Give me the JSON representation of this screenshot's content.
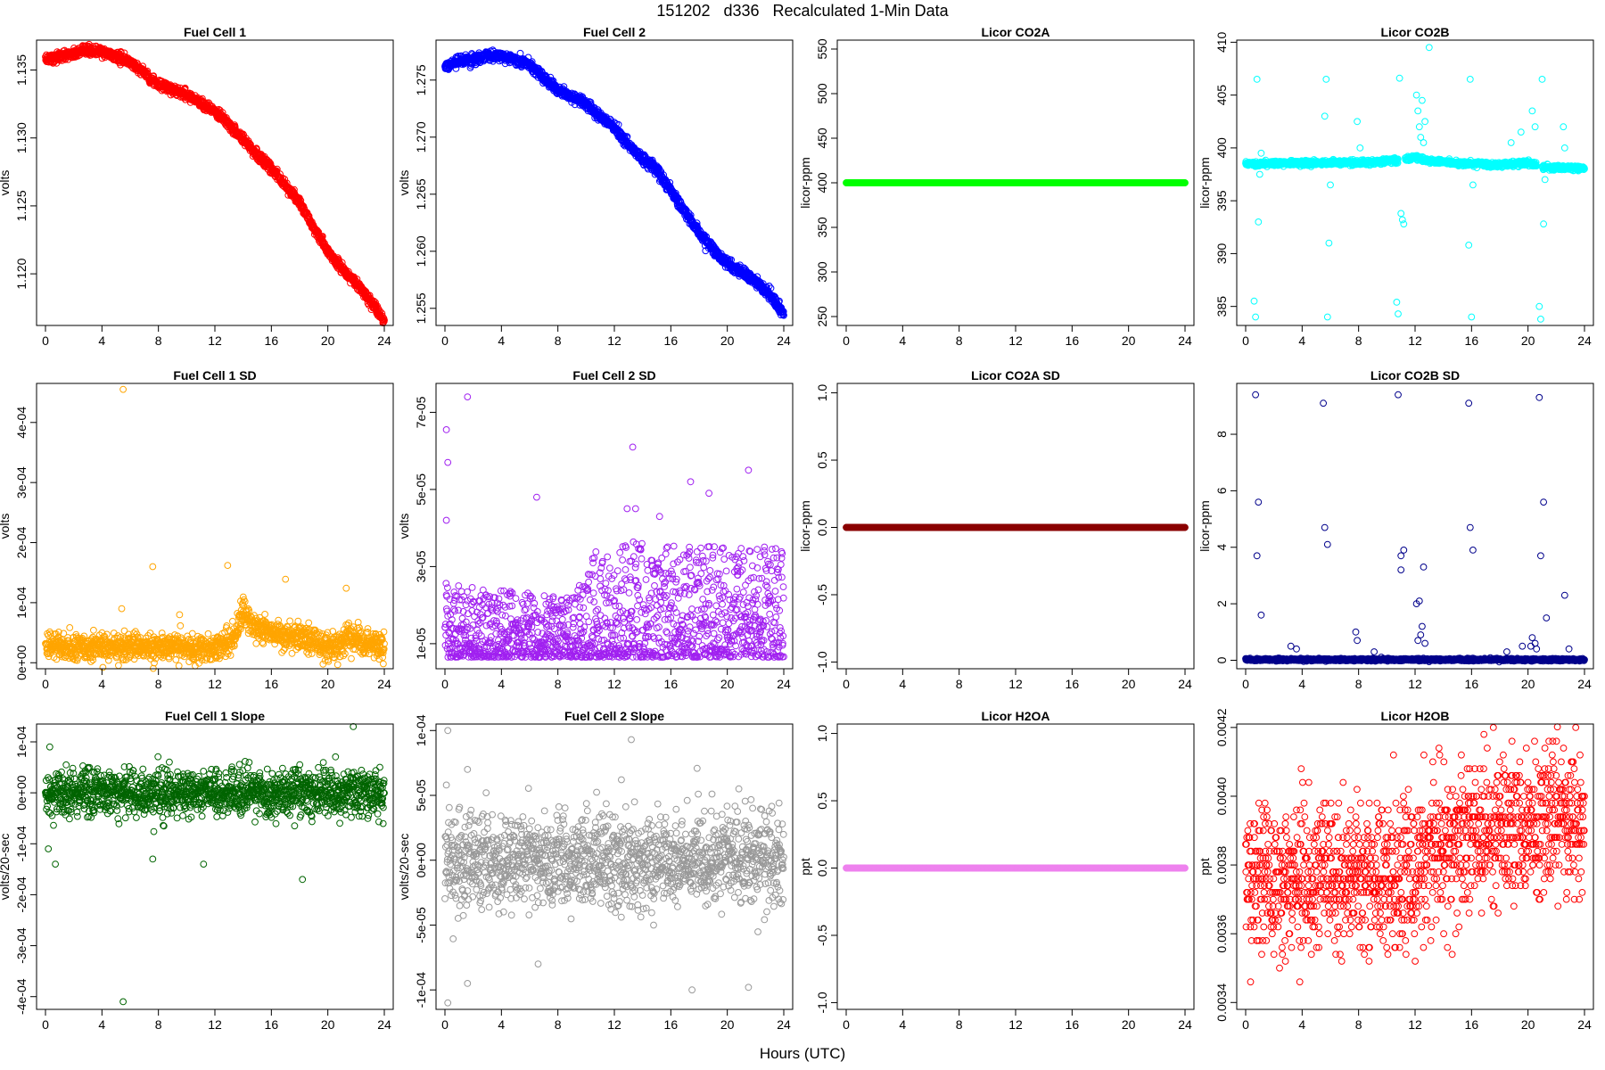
{
  "figure": {
    "title": "151202   d336   Recalculated 1-Min Data",
    "xlabel": "Hours (UTC)"
  },
  "chart_data": [
    {
      "type": "scatter",
      "title": "Fuel Cell 1",
      "ylabel": "volts",
      "color": "#ff0000",
      "xlim": [
        0,
        24
      ],
      "ylim": [
        1.1162,
        1.1372
      ],
      "xticks": [
        0,
        4,
        8,
        12,
        16,
        20,
        24
      ],
      "yticks": [
        1.12,
        1.125,
        1.13,
        1.135
      ],
      "ytick_labels": [
        "1.120",
        "1.125",
        "1.130",
        "1.135"
      ],
      "pattern": "curve",
      "curve_x": [
        0,
        1,
        2,
        3,
        3.7,
        5,
        6,
        7,
        8,
        9,
        10,
        11,
        12,
        13,
        14,
        15,
        16,
        17,
        18,
        19,
        20,
        21,
        22,
        23,
        24
      ],
      "curve_y": [
        1.1358,
        1.136,
        1.1362,
        1.1364,
        1.1364,
        1.136,
        1.1356,
        1.1348,
        1.1339,
        1.1336,
        1.1332,
        1.1326,
        1.1319,
        1.131,
        1.1299,
        1.1288,
        1.1277,
        1.1266,
        1.1252,
        1.1234,
        1.1216,
        1.1204,
        1.1193,
        1.118,
        1.1165
      ],
      "noise": 0.00018,
      "n_points": 1440
    },
    {
      "type": "scatter",
      "title": "Fuel Cell 2",
      "ylabel": "volts",
      "color": "#0000ff",
      "xlim": [
        0,
        24
      ],
      "ylim": [
        1.2535,
        1.2785
      ],
      "xticks": [
        0,
        4,
        8,
        12,
        16,
        20,
        24
      ],
      "yticks": [
        1.255,
        1.26,
        1.265,
        1.27,
        1.275
      ],
      "ytick_labels": [
        "1.255",
        "1.260",
        "1.265",
        "1.270",
        "1.275"
      ],
      "pattern": "curve",
      "curve_x": [
        0,
        1,
        2,
        3,
        3.7,
        5,
        6,
        7,
        8,
        9,
        10,
        11,
        12,
        13,
        14,
        15,
        16,
        17,
        18,
        19,
        20,
        21,
        22,
        23,
        24
      ],
      "curve_y": [
        1.2762,
        1.2766,
        1.2768,
        1.2771,
        1.2772,
        1.2768,
        1.2763,
        1.2752,
        1.2742,
        1.2736,
        1.2729,
        1.2718,
        1.2708,
        1.2693,
        1.2681,
        1.2672,
        1.2653,
        1.2635,
        1.2616,
        1.2602,
        1.2589,
        1.2582,
        1.2573,
        1.2562,
        1.2545
      ],
      "noise": 0.00022,
      "n_points": 1440
    },
    {
      "type": "scatter",
      "title": "Licor CO2A",
      "ylabel": "licor-ppm",
      "color": "#00ff00",
      "xlim": [
        0,
        24
      ],
      "ylim": [
        240,
        560
      ],
      "xticks": [
        0,
        4,
        8,
        12,
        16,
        20,
        24
      ],
      "yticks": [
        250,
        300,
        350,
        400,
        450,
        500,
        550
      ],
      "ytick_labels": [
        "250",
        "300",
        "350",
        "400",
        "450",
        "500",
        "550"
      ],
      "pattern": "flat",
      "flat_value": 400,
      "n_points": 1440
    },
    {
      "type": "scatter",
      "title": "Licor CO2B",
      "ylabel": "licor-ppm",
      "color": "#00ffff",
      "xlim": [
        0,
        24
      ],
      "ylim": [
        383.2,
        410.2
      ],
      "xticks": [
        0,
        4,
        8,
        12,
        16,
        20,
        24
      ],
      "yticks": [
        385,
        390,
        395,
        400,
        405,
        410
      ],
      "ytick_labels": [
        "385",
        "390",
        "395",
        "400",
        "405",
        "410"
      ],
      "pattern": "baseline_spikes",
      "baseline_x": [
        0,
        4,
        8,
        10.5,
        11,
        12,
        13,
        16,
        18,
        20,
        21,
        22,
        24
      ],
      "baseline_y": [
        398.5,
        398.6,
        398.6,
        398.8,
        398.9,
        399.1,
        398.8,
        398.5,
        398.4,
        398.6,
        398.2,
        398.1,
        398.1
      ],
      "noise": 0.12,
      "gaps": [
        [
          10.8,
          11.3
        ],
        [
          20.6,
          21.0
        ]
      ],
      "spikes": [
        [
          0.6,
          385.5
        ],
        [
          0.7,
          384
        ],
        [
          0.8,
          406.5
        ],
        [
          0.9,
          393
        ],
        [
          1.0,
          397.5
        ],
        [
          1.1,
          399.5
        ],
        [
          5.6,
          403
        ],
        [
          5.7,
          406.5
        ],
        [
          5.8,
          384
        ],
        [
          5.9,
          391
        ],
        [
          6.0,
          396.5
        ],
        [
          7.9,
          402.5
        ],
        [
          8.1,
          400
        ],
        [
          10.7,
          385.4
        ],
        [
          10.8,
          384.3
        ],
        [
          10.9,
          406.6
        ],
        [
          11.0,
          393.8
        ],
        [
          11.1,
          393.2
        ],
        [
          11.2,
          392.8
        ],
        [
          12.1,
          405
        ],
        [
          12.2,
          403.5
        ],
        [
          12.3,
          402
        ],
        [
          12.4,
          401
        ],
        [
          12.5,
          404.5
        ],
        [
          12.6,
          400.5
        ],
        [
          12.7,
          402.5
        ],
        [
          13.0,
          409.5
        ],
        [
          15.8,
          390.8
        ],
        [
          15.9,
          406.5
        ],
        [
          16.0,
          384
        ],
        [
          16.1,
          396.5
        ],
        [
          18.8,
          400.5
        ],
        [
          19.5,
          401.5
        ],
        [
          20.3,
          403.5
        ],
        [
          20.5,
          402
        ],
        [
          20.8,
          385
        ],
        [
          20.9,
          383.8
        ],
        [
          21.0,
          406.5
        ],
        [
          21.1,
          392.8
        ],
        [
          21.2,
          397
        ],
        [
          22.5,
          402
        ],
        [
          22.6,
          400
        ]
      ],
      "n_points": 1440
    },
    {
      "type": "scatter",
      "title": "Fuel Cell 1 SD",
      "ylabel": "volts",
      "color": "#ffa500",
      "xlim": [
        0,
        24
      ],
      "ylim": [
        -1e-05,
        0.000465
      ],
      "xticks": [
        0,
        4,
        8,
        12,
        16,
        20,
        24
      ],
      "yticks": [
        0,
        0.0001,
        0.0002,
        0.0003,
        0.0004
      ],
      "ytick_labels": [
        "0e+00",
        "1e-04",
        "2e-04",
        "3e-04",
        "4e-04"
      ],
      "pattern": "baseline_spikes",
      "baseline_x": [
        0,
        4,
        8,
        12,
        13,
        13.5,
        14,
        14.5,
        15,
        16,
        17,
        18,
        19,
        20,
        21,
        21.5,
        22,
        24
      ],
      "baseline_y": [
        2.8e-05,
        2.5e-05,
        2.6e-05,
        2.5e-05,
        3.3e-05,
        5e-05,
        8.8e-05,
        7e-05,
        5.8e-05,
        5.2e-05,
        4.5e-05,
        4.2e-05,
        3.5e-05,
        2.8e-05,
        3e-05,
        5e-05,
        3.5e-05,
        2.5e-05
      ],
      "noise": 1.1e-05,
      "spikes": [
        [
          5.5,
          0.000455
        ],
        [
          7.6,
          0.00016
        ],
        [
          12.9,
          0.000162
        ],
        [
          17.0,
          0.000139
        ],
        [
          21.3,
          0.000124
        ],
        [
          5.4,
          9e-05
        ],
        [
          9.5,
          8e-05
        ]
      ],
      "n_points": 1440
    },
    {
      "type": "scatter",
      "title": "Fuel Cell 2 SD",
      "ylabel": "volts",
      "color": "#a020f0",
      "xlim": [
        0,
        24
      ],
      "ylim": [
        3.5e-06,
        7.75e-05
      ],
      "xticks": [
        0,
        4,
        8,
        12,
        16,
        20,
        24
      ],
      "yticks": [
        1e-05,
        3e-05,
        5e-05,
        7e-05
      ],
      "ytick_labels": [
        "1e-05",
        "3e-05",
        "5e-05",
        "7e-05"
      ],
      "pattern": "random_range",
      "ranges_x": [
        0,
        9,
        11,
        24
      ],
      "ranges_lo": [
        6.5e-06,
        6.5e-06,
        6.5e-06,
        6.5e-06
      ],
      "ranges_hi": [
        2.6e-05,
        2.2e-05,
        3.7e-05,
        3.5e-05
      ],
      "spikes": [
        [
          0.1,
          6.55e-05
        ],
        [
          0.2,
          5.7e-05
        ],
        [
          1.6,
          7.4e-05
        ],
        [
          6.5,
          4.8e-05
        ],
        [
          13.3,
          6.1e-05
        ],
        [
          17.4,
          5.2e-05
        ],
        [
          18.7,
          4.9e-05
        ],
        [
          21.5,
          5.5e-05
        ],
        [
          0.1,
          4.2e-05
        ],
        [
          12.9,
          4.5e-05
        ],
        [
          13.5,
          4.5e-05
        ],
        [
          15.2,
          4.3e-05
        ]
      ],
      "n_points": 1440
    },
    {
      "type": "scatter",
      "title": "Licor CO2A SD",
      "ylabel": "licor-ppm",
      "color": "#8b0000",
      "xlim": [
        0,
        24
      ],
      "ylim": [
        -1.05,
        1.07
      ],
      "xticks": [
        0,
        4,
        8,
        12,
        16,
        20,
        24
      ],
      "yticks": [
        -1,
        -0.5,
        0,
        0.5,
        1
      ],
      "ytick_labels": [
        "-1.0",
        "-0.5",
        "0.0",
        "0.5",
        "1.0"
      ],
      "pattern": "flat",
      "flat_value": 0,
      "n_points": 1440
    },
    {
      "type": "scatter",
      "title": "Licor CO2B SD",
      "ylabel": "licor-ppm",
      "color": "#00008b",
      "xlim": [
        0,
        24
      ],
      "ylim": [
        -0.3,
        9.8
      ],
      "xticks": [
        0,
        4,
        8,
        12,
        16,
        20,
        24
      ],
      "yticks": [
        0,
        2,
        4,
        6,
        8
      ],
      "ytick_labels": [
        "0",
        "2",
        "4",
        "6",
        "8"
      ],
      "pattern": "baseline_spikes",
      "baseline_x": [
        0,
        24
      ],
      "baseline_y": [
        0.02,
        0.02
      ],
      "noise": 0.02,
      "spikes": [
        [
          0.7,
          9.4
        ],
        [
          0.8,
          3.7
        ],
        [
          0.9,
          5.6
        ],
        [
          1.1,
          1.6
        ],
        [
          5.5,
          9.1
        ],
        [
          5.6,
          4.7
        ],
        [
          5.8,
          4.1
        ],
        [
          10.8,
          9.4
        ],
        [
          11.0,
          3.7
        ],
        [
          11.2,
          3.9
        ],
        [
          11.0,
          3.2
        ],
        [
          12.6,
          3.3
        ],
        [
          15.8,
          9.1
        ],
        [
          15.9,
          4.7
        ],
        [
          16.1,
          3.9
        ],
        [
          20.8,
          9.3
        ],
        [
          20.9,
          3.7
        ],
        [
          21.1,
          5.6
        ],
        [
          21.3,
          1.5
        ],
        [
          22.6,
          2.3
        ],
        [
          12.1,
          2.0
        ],
        [
          12.3,
          2.1
        ],
        [
          12.5,
          1.2
        ],
        [
          12.4,
          0.9
        ],
        [
          12.2,
          0.7
        ],
        [
          12.7,
          0.6
        ],
        [
          3.2,
          0.5
        ],
        [
          3.6,
          0.4
        ],
        [
          7.8,
          1.0
        ],
        [
          7.9,
          0.7
        ],
        [
          19.6,
          0.5
        ],
        [
          20.3,
          0.8
        ],
        [
          20.5,
          0.6
        ],
        [
          20.2,
          0.5
        ],
        [
          20.6,
          0.4
        ],
        [
          18.5,
          0.3
        ],
        [
          22.9,
          0.4
        ],
        [
          9.1,
          0.3
        ]
      ],
      "n_points": 1440
    },
    {
      "type": "scatter",
      "title": "Fuel Cell 1 Slope",
      "ylabel": "volts/20-sec",
      "color": "#006400",
      "xlim": [
        0,
        24
      ],
      "ylim": [
        -0.000425,
        0.000135
      ],
      "xticks": [
        0,
        4,
        8,
        12,
        16,
        20,
        24
      ],
      "yticks": [
        -0.0004,
        -0.0003,
        -0.0002,
        -0.0001,
        0,
        0.0001
      ],
      "ytick_labels": [
        "-4e-04",
        "-3e-04",
        "-2e-04",
        "-1e-04",
        "0e+00",
        "1e-04"
      ],
      "pattern": "gaussian",
      "center": 0,
      "sd": 2.2e-05,
      "spikes": [
        [
          5.5,
          -0.00041
        ],
        [
          0.7,
          -0.00014
        ],
        [
          7.6,
          -0.00013
        ],
        [
          11.2,
          -0.00014
        ],
        [
          18.2,
          -0.00017
        ],
        [
          21.8,
          0.00013
        ],
        [
          0.2,
          -0.00011
        ],
        [
          0.3,
          9e-05
        ]
      ],
      "n_points": 1440
    },
    {
      "type": "scatter",
      "title": "Fuel Cell 2 Slope",
      "ylabel": "volts/20-sec",
      "color": "#999999",
      "xlim": [
        0,
        24
      ],
      "ylim": [
        -0.000115,
        0.000105
      ],
      "xticks": [
        0,
        4,
        8,
        12,
        16,
        20,
        24
      ],
      "yticks": [
        -0.0001,
        -5e-05,
        0,
        5e-05,
        0.0001
      ],
      "ytick_labels": [
        "-1e-04",
        "-5e-05",
        "0e+00",
        "5e-05",
        "1e-04"
      ],
      "pattern": "gaussian",
      "center": 0,
      "sd": 1.8e-05,
      "spikes": [
        [
          0.2,
          0.0001
        ],
        [
          0.2,
          -0.00011
        ],
        [
          1.6,
          -9.5e-05
        ],
        [
          13.2,
          9.3e-05
        ],
        [
          6.6,
          -8e-05
        ],
        [
          21.5,
          -9.8e-05
        ],
        [
          17.5,
          -0.0001
        ],
        [
          0.1,
          5.8e-05
        ],
        [
          1.6,
          7e-05
        ],
        [
          12.5,
          6.2e-05
        ]
      ],
      "n_points": 1440
    },
    {
      "type": "scatter",
      "title": "Licor H2OA",
      "ylabel": "ppt",
      "color": "#ee82ee",
      "xlim": [
        0,
        24
      ],
      "ylim": [
        -1.05,
        1.07
      ],
      "xticks": [
        0,
        4,
        8,
        12,
        16,
        20,
        24
      ],
      "yticks": [
        -1,
        -0.5,
        0,
        0.5,
        1
      ],
      "ytick_labels": [
        "-1.0",
        "-0.5",
        "0.0",
        "0.5",
        "1.0"
      ],
      "pattern": "flat",
      "flat_value": 0,
      "n_points": 1440
    },
    {
      "type": "scatter",
      "title": "Licor H2OB",
      "ylabel": "ppt",
      "color": "#ff0000",
      "xlim": [
        0,
        24
      ],
      "ylim": [
        0.00338,
        0.00421
      ],
      "xticks": [
        0,
        4,
        8,
        12,
        16,
        20,
        24
      ],
      "yticks": [
        0.0034,
        0.0036,
        0.0038,
        0.004,
        0.0042
      ],
      "ytick_labels": [
        "0.0034",
        "0.0036",
        "0.0038",
        "0.0040",
        "0.0042"
      ],
      "pattern": "quantized",
      "step": 2e-05,
      "trend_x": [
        0,
        12,
        16,
        24
      ],
      "trend_y": [
        0.00374,
        0.00378,
        0.0039,
        0.00394
      ],
      "sd": 0.00011,
      "n_points": 1440
    }
  ]
}
